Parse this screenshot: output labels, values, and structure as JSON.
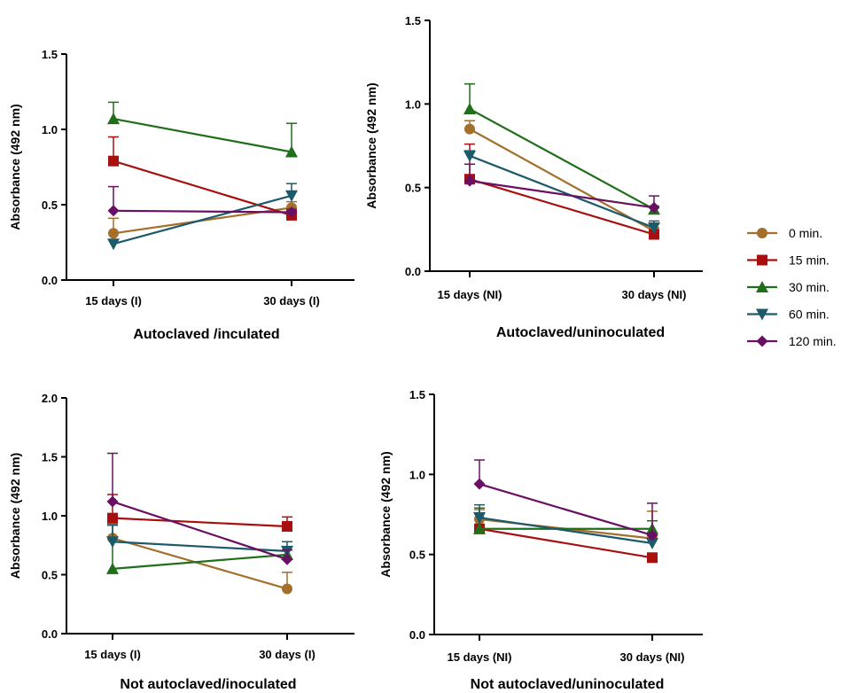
{
  "legend": [
    {
      "name": "0 min.",
      "color": "#a46f2a",
      "marker": "circle"
    },
    {
      "name": "15 min.",
      "color": "#a81010",
      "marker": "square"
    },
    {
      "name": "30 min.",
      "color": "#1f6e1a",
      "marker": "triangle-up"
    },
    {
      "name": "60 min.",
      "color": "#1b5a6a",
      "marker": "triangle-down"
    },
    {
      "name": "120 min.",
      "color": "#6a1064",
      "marker": "diamond"
    }
  ],
  "chart_data": [
    {
      "type": "line",
      "title": "Autoclaved /inculated",
      "ylabel": "Absorbance  (492 nm)",
      "categories": [
        "15 days (I)",
        "30 days (I)"
      ],
      "ylim": [
        0,
        1.5
      ],
      "yticks": [
        "0.0",
        "0.5",
        "1.0",
        "1.5"
      ],
      "series": [
        {
          "name": "0 min.",
          "values": [
            0.31,
            0.48
          ],
          "errors": [
            0.1,
            0.04
          ]
        },
        {
          "name": "15 min.",
          "values": [
            0.79,
            0.43
          ],
          "errors": [
            0.16,
            0.03
          ]
        },
        {
          "name": "30 min.",
          "values": [
            1.07,
            0.85
          ],
          "errors": [
            0.11,
            0.19
          ]
        },
        {
          "name": "60 min.",
          "values": [
            0.24,
            0.56
          ],
          "errors": [
            0.0,
            0.08
          ]
        },
        {
          "name": "120 min.",
          "values": [
            0.46,
            0.45
          ],
          "errors": [
            0.16,
            0.02
          ]
        }
      ]
    },
    {
      "type": "line",
      "title": "Autoclaved/uninoculated",
      "ylabel": "Absorbance  (492 nm)",
      "categories": [
        "15 days (NI)",
        "30 days (NI)"
      ],
      "ylim": [
        0,
        1.5
      ],
      "yticks": [
        "0.0",
        "0.5",
        "1.0",
        "1.5"
      ],
      "series": [
        {
          "name": "0 min.",
          "values": [
            0.85,
            0.24
          ],
          "errors": [
            0.05,
            0.02
          ]
        },
        {
          "name": "15 min.",
          "values": [
            0.55,
            0.22
          ],
          "errors": [
            0.21,
            0.02
          ]
        },
        {
          "name": "30 min.",
          "values": [
            0.97,
            0.37
          ],
          "errors": [
            0.15,
            0.02
          ]
        },
        {
          "name": "60 min.",
          "values": [
            0.69,
            0.26
          ],
          "errors": [
            0.03,
            0.04
          ]
        },
        {
          "name": "120 min.",
          "values": [
            0.54,
            0.38
          ],
          "errors": [
            0.1,
            0.07
          ]
        }
      ]
    },
    {
      "type": "line",
      "title": "Not autoclaved/inoculated",
      "ylabel": "Absorbance  (492 nm)",
      "categories": [
        "15 days (I)",
        "30 days (I)"
      ],
      "ylim": [
        0,
        2.0
      ],
      "yticks": [
        "0.0",
        "0.5",
        "1.0",
        "1.5",
        "2.0"
      ],
      "series": [
        {
          "name": "0 min.",
          "values": [
            0.81,
            0.38
          ],
          "errors": [
            0.12,
            0.14
          ]
        },
        {
          "name": "15 min.",
          "values": [
            0.98,
            0.91
          ],
          "errors": [
            0.2,
            0.08
          ]
        },
        {
          "name": "30 min.",
          "values": [
            0.55,
            0.67
          ],
          "errors": [
            0.37,
            0.04
          ]
        },
        {
          "name": "60 min.",
          "values": [
            0.78,
            0.7
          ],
          "errors": [
            0.14,
            0.08
          ]
        },
        {
          "name": "120 min.",
          "values": [
            1.12,
            0.63
          ],
          "errors": [
            0.41,
            0.08
          ]
        }
      ]
    },
    {
      "type": "line",
      "title": "Not autoclaved/uninoculated",
      "ylabel": "Absorbance  (492 nm)",
      "categories": [
        "15 days (NI)",
        "30 days (NI)"
      ],
      "ylim": [
        0,
        1.5
      ],
      "yticks": [
        "0.0",
        "0.5",
        "1.0",
        "1.5"
      ],
      "series": [
        {
          "name": "0 min.",
          "values": [
            0.72,
            0.6
          ],
          "errors": [
            0.06,
            0.17
          ]
        },
        {
          "name": "15 min.",
          "values": [
            0.66,
            0.48
          ],
          "errors": [
            0.1,
            0.02
          ]
        },
        {
          "name": "30 min.",
          "values": [
            0.66,
            0.66
          ],
          "errors": [
            0.13,
            0.05
          ]
        },
        {
          "name": "60 min.",
          "values": [
            0.73,
            0.57
          ],
          "errors": [
            0.08,
            0.05
          ]
        },
        {
          "name": "120 min.",
          "values": [
            0.94,
            0.62
          ],
          "errors": [
            0.15,
            0.2
          ]
        }
      ]
    }
  ]
}
